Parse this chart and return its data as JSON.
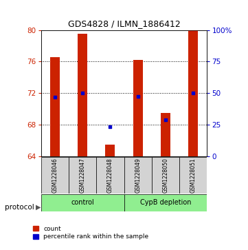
{
  "title": "GDS4828 / ILMN_1886412",
  "samples": [
    "GSM1228046",
    "GSM1228047",
    "GSM1228048",
    "GSM1228049",
    "GSM1228050",
    "GSM1228051"
  ],
  "count_values": [
    76.6,
    79.5,
    65.5,
    76.2,
    69.5,
    80.0
  ],
  "percentile_values": [
    71.5,
    72.0,
    67.7,
    71.6,
    68.6,
    72.0
  ],
  "bar_bottom": 64.0,
  "ylim_left": [
    64,
    80
  ],
  "ylim_right": [
    0,
    100
  ],
  "yticks_left": [
    64,
    68,
    72,
    76,
    80
  ],
  "yticks_right": [
    0,
    25,
    50,
    75,
    100
  ],
  "ytick_labels_right": [
    "0",
    "25",
    "50",
    "75",
    "100%"
  ],
  "bar_color": "#cc2200",
  "percentile_color": "#0000cc",
  "bar_width": 0.35,
  "groups": [
    {
      "label": "control",
      "start": 0,
      "end": 3,
      "color": "#90ee90"
    },
    {
      "label": "CypB depletion",
      "start": 3,
      "end": 6,
      "color": "#90ee90"
    }
  ],
  "protocol_label": "protocol",
  "legend_count_label": "count",
  "legend_percentile_label": "percentile rank within the sample",
  "left_tick_color": "#cc2200",
  "right_tick_color": "#0000cc",
  "bg_sample_box": "#d3d3d3",
  "bg_group_box": "#90ee90",
  "grid_yticks": [
    68,
    72,
    76
  ]
}
